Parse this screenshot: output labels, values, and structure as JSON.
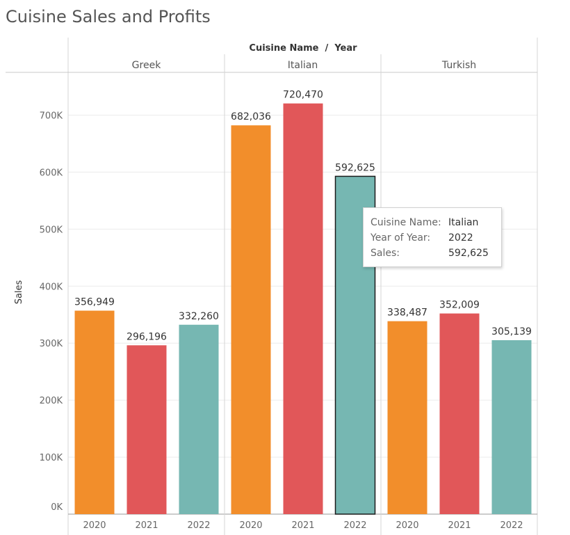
{
  "title": "Cuisine Sales and Profits",
  "header_title": "Cuisine Name  /  Year",
  "colors": {
    "2020": "#f28e2b",
    "2021": "#e15759",
    "2022": "#76b7b2"
  },
  "tooltip": {
    "rows": [
      {
        "key": "Cuisine Name:",
        "value": "Italian"
      },
      {
        "key": "Year of Year:",
        "value": "2022"
      },
      {
        "key": "Sales:",
        "value": "592,625"
      }
    ]
  },
  "chart_data": {
    "type": "bar",
    "title": "Cuisine Sales and Profits",
    "ylabel": "Sales",
    "xlabel": "",
    "ylim": [
      0,
      775000
    ],
    "yticks": [
      {
        "value": 0,
        "label": "0K"
      },
      {
        "value": 100000,
        "label": "100K"
      },
      {
        "value": 200000,
        "label": "200K"
      },
      {
        "value": 300000,
        "label": "300K"
      },
      {
        "value": 400000,
        "label": "400K"
      },
      {
        "value": 500000,
        "label": "500K"
      },
      {
        "value": 600000,
        "label": "600K"
      },
      {
        "value": 700000,
        "label": "700K"
      }
    ],
    "grid": true,
    "groups": [
      {
        "name": "Greek",
        "bars": [
          {
            "year": "2020",
            "value": 356949,
            "label": "356,949"
          },
          {
            "year": "2021",
            "value": 296196,
            "label": "296,196"
          },
          {
            "year": "2022",
            "value": 332260,
            "label": "332,260"
          }
        ]
      },
      {
        "name": "Italian",
        "bars": [
          {
            "year": "2020",
            "value": 682036,
            "label": "682,036"
          },
          {
            "year": "2021",
            "value": 720470,
            "label": "720,470"
          },
          {
            "year": "2022",
            "value": 592625,
            "label": "592,625",
            "selected": true
          }
        ]
      },
      {
        "name": "Turkish",
        "bars": [
          {
            "year": "2020",
            "value": 338487,
            "label": "338,487"
          },
          {
            "year": "2021",
            "value": 352009,
            "label": "352,009"
          },
          {
            "year": "2022",
            "value": 305139,
            "label": "305,139"
          }
        ]
      }
    ]
  }
}
